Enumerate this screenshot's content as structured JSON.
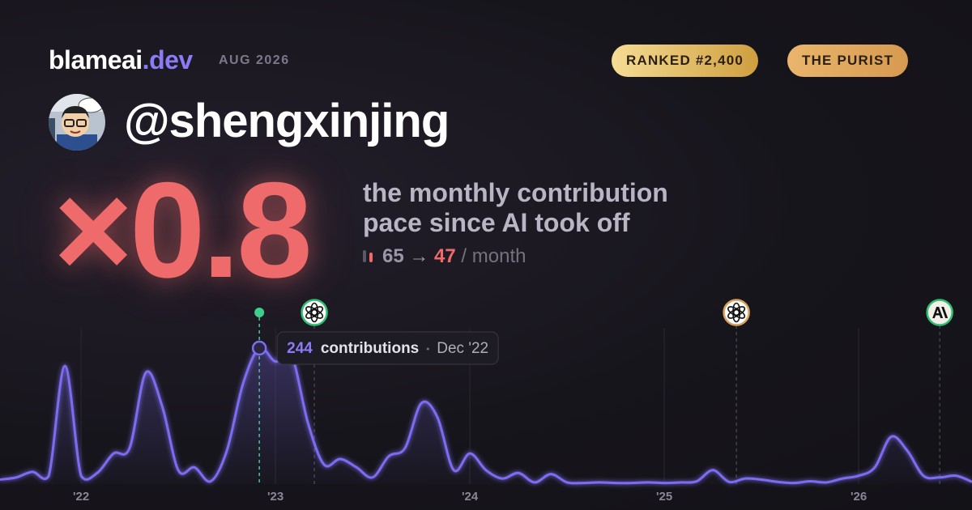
{
  "header": {
    "brand": "blameai",
    "brand_suffix": ".dev",
    "period": "AUG 2026",
    "badges": [
      "RANKED #2,400",
      "THE PURIST"
    ],
    "username": "@shengxinjing"
  },
  "headline": {
    "multiplier": "×0.8",
    "description": [
      "the monthly contribution",
      "pace since AI took off"
    ],
    "before": 65,
    "arrow": "→",
    "after": 47,
    "unit": "/ month"
  },
  "chart_data": {
    "type": "line",
    "x": [
      2021.583,
      2021.667,
      2021.75,
      2021.833,
      2021.917,
      2022,
      2022.083,
      2022.167,
      2022.25,
      2022.333,
      2022.417,
      2022.5,
      2022.583,
      2022.667,
      2022.75,
      2022.833,
      2022.917,
      2023,
      2023.083,
      2023.167,
      2023.25,
      2023.333,
      2023.417,
      2023.5,
      2023.583,
      2023.667,
      2023.75,
      2023.833,
      2023.917,
      2024,
      2024.083,
      2024.167,
      2024.25,
      2024.333,
      2024.417,
      2024.5,
      2024.583,
      2024.667,
      2024.75,
      2024.833,
      2024.917,
      2025,
      2025.083,
      2025.167,
      2025.25,
      2025.333,
      2025.417,
      2025.5,
      2025.583,
      2025.667,
      2025.75,
      2025.833,
      2025.917,
      2026,
      2026.083,
      2026.167,
      2026.25,
      2026.333,
      2026.417,
      2026.5,
      2026.583
    ],
    "series": [
      {
        "name": "contributions",
        "color": "#7c6cf0",
        "values": [
          8,
          12,
          22,
          14,
          212,
          15,
          20,
          55,
          65,
          200,
          140,
          25,
          30,
          5,
          60,
          180,
          244,
          220,
          230,
          110,
          35,
          45,
          30,
          12,
          50,
          65,
          145,
          120,
          25,
          55,
          25,
          10,
          20,
          3,
          18,
          3,
          2,
          3,
          2,
          2,
          3,
          2,
          3,
          5,
          25,
          4,
          10,
          8,
          4,
          2,
          5,
          3,
          10,
          15,
          30,
          85,
          60,
          15,
          12,
          15,
          4
        ]
      }
    ],
    "xlim": [
      2021.583,
      2026.583
    ],
    "ylim": [
      0,
      260
    ],
    "xticks": [
      {
        "value": 2022,
        "label": "'22"
      },
      {
        "value": 2023,
        "label": "'23"
      },
      {
        "value": 2024,
        "label": "'24"
      },
      {
        "value": 2025,
        "label": "'25"
      },
      {
        "value": 2026,
        "label": "'26"
      }
    ],
    "grid": true,
    "tooltip": {
      "x": 2022.917,
      "label": "contributions",
      "date": "Dec '22"
    },
    "markers": [
      {
        "x": 2022.917,
        "icon": "dot",
        "color": "#3ecf8e"
      },
      {
        "x": 2023.2,
        "icon": "openai",
        "color": "#2fbf71"
      },
      {
        "x": 2025.371,
        "icon": "openai",
        "color": "#d9a05b"
      },
      {
        "x": 2026.417,
        "icon": "anthropic",
        "color": "#2fbf71"
      }
    ]
  }
}
